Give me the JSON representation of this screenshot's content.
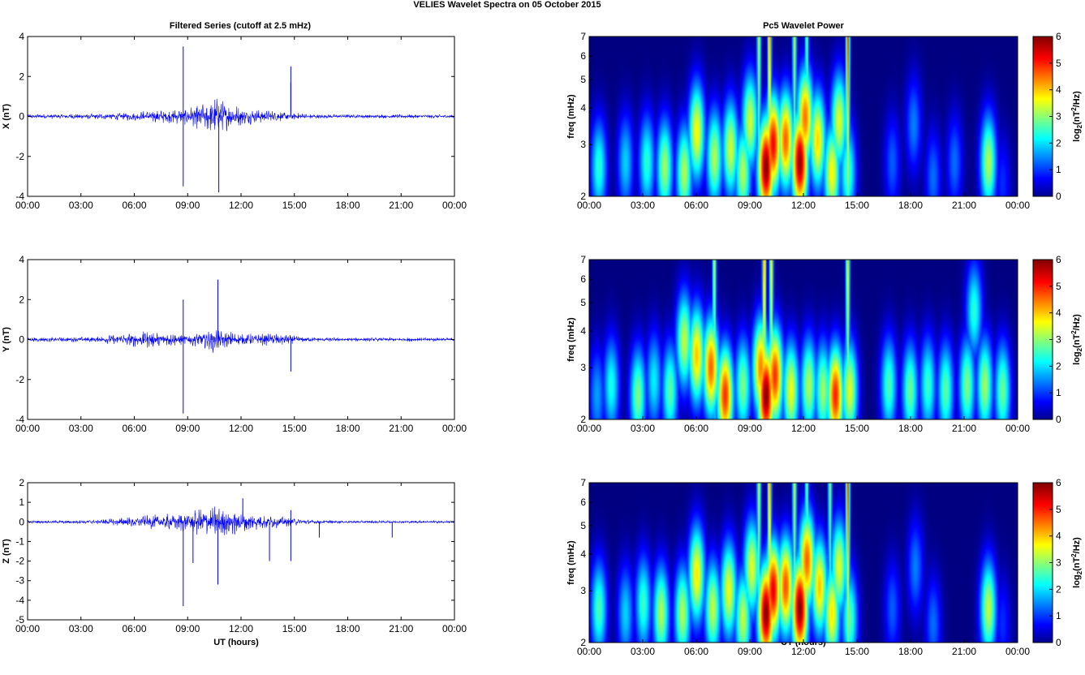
{
  "figure": {
    "title": "VELIES Wavelet Spectra on 05 October   2015",
    "left_title": "Filtered Series (cutoff at 2.5 mHz)",
    "right_title": "Pc5 Wavelet Power",
    "xlabel": "UT (hours)",
    "freq_label": "freq (mHz)",
    "colorbar_label": "log2(nT2/Hz)"
  },
  "colors": {
    "trace": "#0000ff",
    "axis": "#000000"
  },
  "chart_data": [
    {
      "type": "line",
      "panel": "X",
      "ylabel": "X (nT)",
      "ylim": [
        -4,
        4
      ],
      "yticks": [
        "4",
        "2",
        "0",
        "-2",
        "-4"
      ],
      "xticks": [
        "00:00",
        "03:00",
        "06:00",
        "09:00",
        "12:00",
        "15:00",
        "18:00",
        "21:00",
        "00:00"
      ],
      "xlim_hours": [
        0,
        24
      ],
      "envelope": {
        "x": [
          0,
          2,
          4,
          6,
          7,
          8,
          9,
          10,
          10.5,
          11,
          12,
          13,
          14,
          15,
          16,
          18,
          20,
          22,
          24
        ],
        "amp": [
          0.12,
          0.13,
          0.16,
          0.22,
          0.35,
          0.35,
          0.45,
          0.8,
          1.0,
          0.8,
          0.5,
          0.35,
          0.3,
          0.2,
          0.12,
          0.1,
          0.1,
          0.1,
          0.1
        ]
      },
      "spikes": [
        {
          "x": 8.75,
          "y": 3.5
        },
        {
          "x": 8.75,
          "y": -3.5
        },
        {
          "x": 10.75,
          "y": -3.8
        },
        {
          "x": 14.8,
          "y": 2.5
        },
        {
          "x": 14.8,
          "y": 1.7
        }
      ]
    },
    {
      "type": "line",
      "panel": "Y",
      "ylabel": "Y (nT)",
      "ylim": [
        -4,
        4
      ],
      "yticks": [
        "4",
        "2",
        "0",
        "-2",
        "-4"
      ],
      "xticks": [
        "00:00",
        "03:00",
        "06:00",
        "09:00",
        "12:00",
        "15:00",
        "18:00",
        "21:00",
        "00:00"
      ],
      "xlim_hours": [
        0,
        24
      ],
      "envelope": {
        "x": [
          0,
          2,
          4,
          5,
          6,
          7,
          8,
          9,
          10,
          10.5,
          11,
          12,
          13,
          14,
          15,
          16,
          18,
          20,
          22,
          24
        ],
        "amp": [
          0.12,
          0.12,
          0.15,
          0.3,
          0.4,
          0.45,
          0.4,
          0.3,
          0.5,
          0.7,
          0.5,
          0.3,
          0.3,
          0.35,
          0.2,
          0.12,
          0.1,
          0.1,
          0.1,
          0.1
        ]
      },
      "spikes": [
        {
          "x": 8.75,
          "y": 2.0
        },
        {
          "x": 8.75,
          "y": -3.7
        },
        {
          "x": 10.7,
          "y": 3.0
        },
        {
          "x": 14.8,
          "y": -1.6
        }
      ]
    },
    {
      "type": "line",
      "panel": "Z",
      "ylabel": "Z (nT)",
      "ylim": [
        -5,
        2
      ],
      "yticks": [
        "2",
        "1",
        "0",
        "-1",
        "-2",
        "-3",
        "-4",
        "-5"
      ],
      "xticks": [
        "00:00",
        "03:00",
        "06:00",
        "09:00",
        "12:00",
        "15:00",
        "18:00",
        "21:00",
        "00:00"
      ],
      "xlim_hours": [
        0,
        24
      ],
      "envelope": {
        "x": [
          0,
          2,
          4,
          6,
          7,
          8,
          9,
          10,
          10.5,
          11,
          12,
          13,
          14,
          15,
          16,
          18,
          20,
          22,
          24
        ],
        "amp": [
          0.07,
          0.08,
          0.12,
          0.3,
          0.4,
          0.45,
          0.55,
          0.9,
          1.0,
          0.8,
          0.7,
          0.4,
          0.35,
          0.2,
          0.1,
          0.07,
          0.07,
          0.07,
          0.07
        ]
      },
      "spikes": [
        {
          "x": 8.75,
          "y": -4.3
        },
        {
          "x": 9.3,
          "y": -2.1
        },
        {
          "x": 10.7,
          "y": -3.2
        },
        {
          "x": 12.1,
          "y": 1.2
        },
        {
          "x": 13.6,
          "y": -2.0
        },
        {
          "x": 14.8,
          "y": -2.0
        },
        {
          "x": 14.8,
          "y": 0.6
        },
        {
          "x": 16.4,
          "y": -0.8
        },
        {
          "x": 20.5,
          "y": -0.8
        }
      ]
    },
    {
      "type": "heatmap",
      "panel": "X power",
      "ylabel": "freq (mHz)",
      "yscale": "log",
      "ylim": [
        2,
        7
      ],
      "yticks": [
        "7",
        "6",
        "5",
        "4",
        "3",
        "2"
      ],
      "xticks": [
        "00:00",
        "03:00",
        "06:00",
        "09:00",
        "12:00",
        "15:00",
        "18:00",
        "21:00",
        "00:00"
      ],
      "colorbar": {
        "range": [
          0,
          6
        ],
        "ticks": [
          "6",
          "5",
          "4",
          "3",
          "2",
          "1",
          "0"
        ],
        "colormap": "jet"
      },
      "blobs": [
        {
          "t": 0.5,
          "f": 2.5,
          "p": 2.5
        },
        {
          "t": 2.0,
          "f": 2.6,
          "p": 2.0
        },
        {
          "t": 3.2,
          "f": 2.6,
          "p": 2.5
        },
        {
          "t": 4.2,
          "f": 2.5,
          "p": 3.2
        },
        {
          "t": 5.3,
          "f": 2.4,
          "p": 3.3
        },
        {
          "t": 6.0,
          "f": 3.3,
          "p": 3.8
        },
        {
          "t": 7.0,
          "f": 2.7,
          "p": 3.3
        },
        {
          "t": 7.9,
          "f": 2.9,
          "p": 3.5
        },
        {
          "t": 8.6,
          "f": 2.4,
          "p": 3.3
        },
        {
          "t": 9.0,
          "f": 3.6,
          "p": 3.5
        },
        {
          "t": 9.9,
          "f": 2.5,
          "p": 6.0
        },
        {
          "t": 10.3,
          "f": 3.0,
          "p": 5.3
        },
        {
          "t": 11.0,
          "f": 3.1,
          "p": 4.7
        },
        {
          "t": 11.8,
          "f": 2.6,
          "p": 5.9
        },
        {
          "t": 12.1,
          "f": 3.7,
          "p": 4.6
        },
        {
          "t": 12.8,
          "f": 3.1,
          "p": 4.0
        },
        {
          "t": 13.6,
          "f": 2.4,
          "p": 3.8
        },
        {
          "t": 14.0,
          "f": 3.6,
          "p": 3.6
        },
        {
          "t": 14.5,
          "f": 2.4,
          "p": 2.7
        },
        {
          "t": 17.0,
          "f": 2.6,
          "p": 1.3
        },
        {
          "t": 18.2,
          "f": 3.5,
          "p": 1.5
        },
        {
          "t": 19.3,
          "f": 2.3,
          "p": 1.4
        },
        {
          "t": 20.5,
          "f": 2.6,
          "p": 1.4
        },
        {
          "t": 22.4,
          "f": 2.6,
          "p": 3.3
        },
        {
          "t": 23.2,
          "f": 2.2,
          "p": 1.0
        }
      ],
      "lines": [
        {
          "t": 14.5,
          "p": 5.0
        },
        {
          "t": 9.5,
          "p": 3.5
        },
        {
          "t": 10.1,
          "p": 4.5
        },
        {
          "t": 11.5,
          "p": 3.5
        },
        {
          "t": 12.2,
          "p": 3.0
        }
      ]
    },
    {
      "type": "heatmap",
      "panel": "Y power",
      "ylabel": "freq (mHz)",
      "yscale": "log",
      "ylim": [
        2,
        7
      ],
      "yticks": [
        "7",
        "6",
        "5",
        "4",
        "3",
        "2"
      ],
      "xticks": [
        "00:00",
        "03:00",
        "06:00",
        "09:00",
        "12:00",
        "15:00",
        "18:00",
        "21:00",
        "00:00"
      ],
      "colorbar": {
        "range": [
          0,
          6
        ],
        "ticks": [
          "6",
          "5",
          "4",
          "3",
          "2",
          "1",
          "0"
        ],
        "colormap": "jet"
      },
      "blobs": [
        {
          "t": 0.4,
          "f": 2.4,
          "p": 1.7
        },
        {
          "t": 1.2,
          "f": 2.6,
          "p": 2.4
        },
        {
          "t": 2.7,
          "f": 2.4,
          "p": 3.0
        },
        {
          "t": 3.6,
          "f": 2.7,
          "p": 2.2
        },
        {
          "t": 4.5,
          "f": 2.5,
          "p": 2.8
        },
        {
          "t": 5.3,
          "f": 3.7,
          "p": 3.4
        },
        {
          "t": 6.0,
          "f": 3.3,
          "p": 4.1
        },
        {
          "t": 6.8,
          "f": 3.0,
          "p": 4.7
        },
        {
          "t": 7.6,
          "f": 2.4,
          "p": 5.0
        },
        {
          "t": 8.6,
          "f": 2.6,
          "p": 3.0
        },
        {
          "t": 9.6,
          "f": 3.0,
          "p": 4.5
        },
        {
          "t": 9.9,
          "f": 2.4,
          "p": 6.0
        },
        {
          "t": 10.4,
          "f": 2.8,
          "p": 5.0
        },
        {
          "t": 11.3,
          "f": 2.5,
          "p": 3.7
        },
        {
          "t": 12.3,
          "f": 2.6,
          "p": 3.3
        },
        {
          "t": 13.1,
          "f": 2.5,
          "p": 3.2
        },
        {
          "t": 13.8,
          "f": 2.4,
          "p": 5.1
        },
        {
          "t": 14.6,
          "f": 2.5,
          "p": 3.6
        },
        {
          "t": 16.8,
          "f": 2.6,
          "p": 2.7
        },
        {
          "t": 18.0,
          "f": 2.5,
          "p": 2.9
        },
        {
          "t": 19.0,
          "f": 2.6,
          "p": 2.6
        },
        {
          "t": 20.0,
          "f": 2.5,
          "p": 2.8
        },
        {
          "t": 21.2,
          "f": 2.6,
          "p": 3.0
        },
        {
          "t": 22.2,
          "f": 2.6,
          "p": 3.2
        },
        {
          "t": 23.2,
          "f": 2.5,
          "p": 2.9
        },
        {
          "t": 21.6,
          "f": 4.7,
          "p": 2.5
        }
      ],
      "lines": [
        {
          "t": 14.5,
          "p": 4.0
        },
        {
          "t": 9.8,
          "p": 4.5
        },
        {
          "t": 10.2,
          "p": 4.0
        },
        {
          "t": 7.0,
          "p": 3.5
        }
      ]
    },
    {
      "type": "heatmap",
      "panel": "Z power",
      "ylabel": "freq (mHz)",
      "yscale": "log",
      "ylim": [
        2,
        7
      ],
      "yticks": [
        "7",
        "6",
        "5",
        "4",
        "3",
        "2"
      ],
      "xticks": [
        "00:00",
        "03:00",
        "06:00",
        "09:00",
        "12:00",
        "15:00",
        "18:00",
        "21:00",
        "00:00"
      ],
      "colorbar": {
        "range": [
          0,
          6
        ],
        "ticks": [
          "6",
          "5",
          "4",
          "3",
          "2",
          "1",
          "0"
        ],
        "colormap": "jet"
      },
      "blobs": [
        {
          "t": 0.5,
          "f": 2.6,
          "p": 2.7
        },
        {
          "t": 2.0,
          "f": 2.5,
          "p": 2.0
        },
        {
          "t": 3.0,
          "f": 2.7,
          "p": 2.6
        },
        {
          "t": 4.0,
          "f": 2.5,
          "p": 3.3
        },
        {
          "t": 5.2,
          "f": 2.5,
          "p": 3.3
        },
        {
          "t": 6.0,
          "f": 3.4,
          "p": 3.9
        },
        {
          "t": 6.9,
          "f": 2.6,
          "p": 3.4
        },
        {
          "t": 7.8,
          "f": 3.0,
          "p": 3.7
        },
        {
          "t": 8.6,
          "f": 2.4,
          "p": 3.4
        },
        {
          "t": 9.1,
          "f": 3.6,
          "p": 3.6
        },
        {
          "t": 9.9,
          "f": 2.5,
          "p": 6.0
        },
        {
          "t": 10.3,
          "f": 3.0,
          "p": 5.4
        },
        {
          "t": 11.0,
          "f": 3.1,
          "p": 4.8
        },
        {
          "t": 11.8,
          "f": 2.6,
          "p": 6.0
        },
        {
          "t": 12.2,
          "f": 3.8,
          "p": 4.7
        },
        {
          "t": 12.9,
          "f": 3.1,
          "p": 4.1
        },
        {
          "t": 13.6,
          "f": 2.5,
          "p": 3.9
        },
        {
          "t": 14.0,
          "f": 3.6,
          "p": 3.6
        },
        {
          "t": 14.6,
          "f": 2.4,
          "p": 2.8
        },
        {
          "t": 17.0,
          "f": 2.6,
          "p": 1.3
        },
        {
          "t": 18.3,
          "f": 3.6,
          "p": 1.5
        },
        {
          "t": 19.3,
          "f": 2.3,
          "p": 1.4
        },
        {
          "t": 22.4,
          "f": 2.6,
          "p": 3.4
        },
        {
          "t": 23.2,
          "f": 2.3,
          "p": 1.0
        }
      ],
      "lines": [
        {
          "t": 14.5,
          "p": 5.0
        },
        {
          "t": 9.5,
          "p": 3.5
        },
        {
          "t": 10.1,
          "p": 4.5
        },
        {
          "t": 11.5,
          "p": 3.6
        },
        {
          "t": 12.2,
          "p": 3.0
        },
        {
          "t": 13.5,
          "p": 3.2
        }
      ]
    }
  ]
}
